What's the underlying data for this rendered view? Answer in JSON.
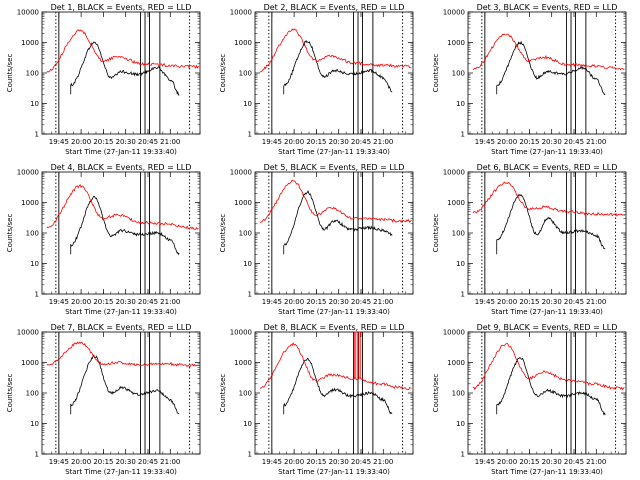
{
  "chart_data": [
    {
      "type": "line",
      "title": "Det 1, BLACK = Events, RED = LLD",
      "ylabel": "Counts/sec",
      "xlabel": "Start Time (27-Jan-11 19:33:40)",
      "yscale": "log",
      "ylim": [
        1,
        10000
      ],
      "yticks": [
        "1",
        "10",
        "100",
        "1000",
        "10000"
      ],
      "xticks": [
        "19:45",
        "20:00",
        "20:15",
        "20:30",
        "20:45",
        "21:00"
      ],
      "series": [
        {
          "color": "#000000",
          "profile": [
            40,
            1000,
            70,
            110,
            90,
            150,
            60,
            20
          ]
        },
        {
          "color": "#ff0000",
          "profile": [
            110,
            2500,
            250,
            350,
            200,
            180,
            160,
            160
          ]
        }
      ]
    },
    {
      "type": "line",
      "title": "Det 2, BLACK = Events, RED = LLD",
      "ylabel": "Counts/sec",
      "xlabel": "Start Time (27-Jan-11 19:33:40)",
      "yscale": "log",
      "ylim": [
        1,
        10000
      ],
      "yticks": [
        "1",
        "10",
        "100",
        "1000",
        "10000"
      ],
      "xticks": [
        "19:45",
        "20:00",
        "20:15",
        "20:30",
        "20:45",
        "21:00"
      ],
      "series": [
        {
          "color": "#000000",
          "profile": [
            40,
            1100,
            75,
            120,
            90,
            120,
            70,
            25
          ]
        },
        {
          "color": "#ff0000",
          "profile": [
            120,
            2600,
            260,
            360,
            210,
            180,
            170,
            160
          ]
        }
      ]
    },
    {
      "type": "line",
      "title": "Det 3, BLACK = Events, RED = LLD",
      "ylabel": "Counts/sec",
      "xlabel": "Start Time (27-Jan-11 19:33:40)",
      "yscale": "log",
      "ylim": [
        1,
        10000
      ],
      "yticks": [
        "1",
        "10",
        "100",
        "1000",
        "10000"
      ],
      "xticks": [
        "19:45",
        "20:00",
        "20:15",
        "20:30",
        "20:45",
        "21:00"
      ],
      "series": [
        {
          "color": "#000000",
          "profile": [
            40,
            1000,
            70,
            110,
            90,
            150,
            60,
            20
          ]
        },
        {
          "color": "#ff0000",
          "profile": [
            130,
            1900,
            250,
            330,
            190,
            170,
            150,
            140
          ]
        }
      ]
    },
    {
      "type": "line",
      "title": "Det 4, BLACK = Events, RED = LLD",
      "ylabel": "Counts/sec",
      "xlabel": "Start Time (27-Jan-11 19:33:40)",
      "yscale": "log",
      "ylim": [
        1,
        10000
      ],
      "yticks": [
        "1",
        "10",
        "100",
        "1000",
        "10000"
      ],
      "xticks": [
        "19:45",
        "20:00",
        "20:15",
        "20:30",
        "20:45",
        "21:00"
      ],
      "series": [
        {
          "color": "#000000",
          "profile": [
            40,
            1500,
            80,
            120,
            90,
            100,
            60,
            20
          ]
        },
        {
          "color": "#ff0000",
          "profile": [
            150,
            3500,
            300,
            400,
            220,
            200,
            150,
            140
          ]
        }
      ]
    },
    {
      "type": "line",
      "title": "Det 5, BLACK = Events, RED = LLD",
      "ylabel": "Counts/sec",
      "xlabel": "Start Time (27-Jan-11 19:33:40)",
      "yscale": "log",
      "ylim": [
        1,
        10000
      ],
      "yticks": [
        "1",
        "10",
        "100",
        "1000",
        "10000"
      ],
      "xticks": [
        "19:45",
        "20:00",
        "20:15",
        "20:30",
        "20:45",
        "21:00"
      ],
      "series": [
        {
          "color": "#000000",
          "profile": [
            40,
            2200,
            130,
            250,
            130,
            150,
            120,
            90
          ]
        },
        {
          "color": "#ff0000",
          "profile": [
            240,
            5000,
            400,
            650,
            300,
            280,
            250,
            250
          ]
        }
      ]
    },
    {
      "type": "line",
      "title": "Det 6, BLACK = Events, RED = LLD",
      "ylabel": "Counts/sec",
      "xlabel": "Start Time (27-Jan-11 19:33:40)",
      "yscale": "log",
      "ylim": [
        1,
        10000
      ],
      "yticks": [
        "1",
        "10",
        "100",
        "1000",
        "10000"
      ],
      "xticks": [
        "19:45",
        "20:00",
        "20:15",
        "20:30",
        "20:45",
        "21:00"
      ],
      "series": [
        {
          "color": "#000000",
          "profile": [
            60,
            1800,
            90,
            300,
            100,
            120,
            80,
            30
          ]
        },
        {
          "color": "#ff0000",
          "profile": [
            450,
            4500,
            600,
            700,
            500,
            420,
            400,
            400
          ]
        }
      ]
    },
    {
      "type": "line",
      "title": "Det 7, BLACK = Events, RED = LLD",
      "ylabel": "Counts/sec",
      "xlabel": "Start Time (27-Jan-11 19:33:40)",
      "yscale": "log",
      "ylim": [
        1,
        10000
      ],
      "yticks": [
        "1",
        "10",
        "100",
        "1000",
        "10000"
      ],
      "xticks": [
        "19:45",
        "20:00",
        "20:15",
        "20:30",
        "20:45",
        "21:00"
      ],
      "series": [
        {
          "color": "#000000",
          "profile": [
            40,
            1600,
            100,
            150,
            90,
            120,
            60,
            20
          ]
        },
        {
          "color": "#ff0000",
          "profile": [
            800,
            4500,
            900,
            1000,
            850,
            900,
            800,
            800
          ]
        }
      ]
    },
    {
      "type": "line",
      "title": "Det 8, BLACK = Events, RED = LLD",
      "ylabel": "Counts/sec",
      "xlabel": "Start Time (27-Jan-11 19:33:40)",
      "yscale": "log",
      "ylim": [
        1,
        10000
      ],
      "yticks": [
        "1",
        "10",
        "100",
        "1000",
        "10000"
      ],
      "xticks": [
        "19:45",
        "20:00",
        "20:15",
        "20:30",
        "20:45",
        "21:00"
      ],
      "series": [
        {
          "color": "#000000",
          "profile": [
            40,
            1300,
            80,
            130,
            80,
            100,
            60,
            20
          ]
        },
        {
          "color": "#ff0000",
          "profile": [
            150,
            4000,
            250,
            400,
            300,
            200,
            150,
            140
          ]
        }
      ]
    },
    {
      "type": "line",
      "title": "Det 9, BLACK = Events, RED = LLD",
      "ylabel": "Counts/sec",
      "xlabel": "Start Time (27-Jan-11 19:33:40)",
      "yscale": "log",
      "ylim": [
        1,
        10000
      ],
      "yticks": [
        "1",
        "10",
        "100",
        "1000",
        "10000"
      ],
      "xticks": [
        "19:45",
        "20:00",
        "20:15",
        "20:30",
        "20:45",
        "21:00"
      ],
      "series": [
        {
          "color": "#000000",
          "profile": [
            40,
            1400,
            80,
            120,
            80,
            100,
            60,
            20
          ]
        },
        {
          "color": "#ff0000",
          "profile": [
            140,
            4000,
            300,
            500,
            260,
            200,
            150,
            140
          ]
        }
      ]
    }
  ]
}
